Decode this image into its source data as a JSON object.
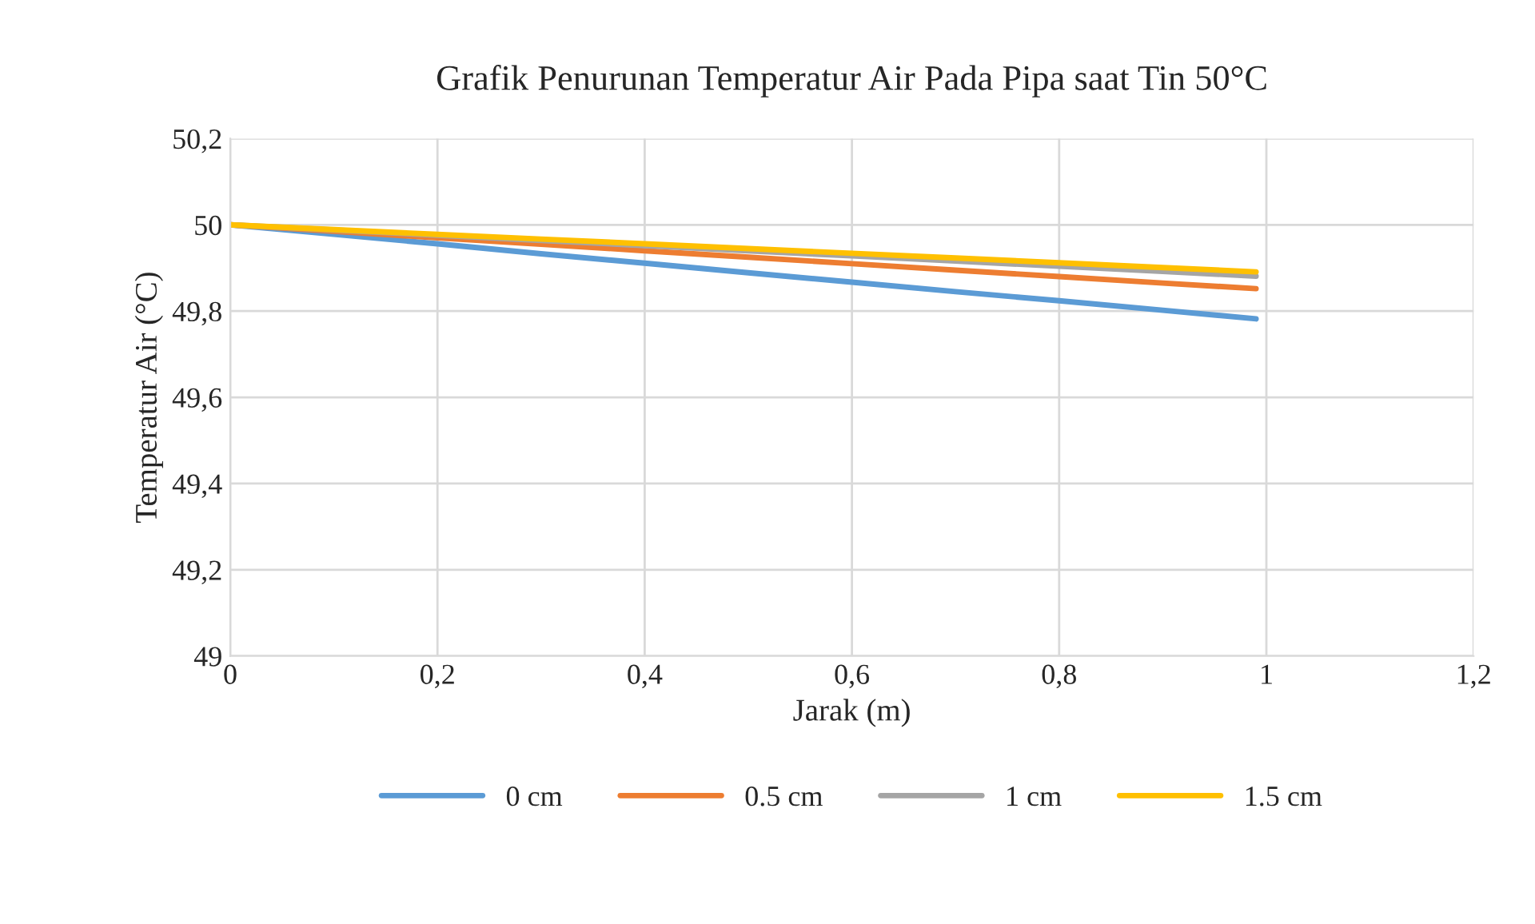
{
  "chart_data": {
    "type": "line",
    "title": "Grafik Penurunan Temperatur Air Pada Pipa saat Tin 50°C",
    "xlabel": "Jarak (m)",
    "ylabel": "Temperatur Air (°C)",
    "x": [
      0,
      0.1,
      0.2,
      0.3,
      0.4,
      0.5,
      0.6,
      0.7,
      0.8,
      0.9,
      0.99
    ],
    "series": [
      {
        "name": "0 cm",
        "color": "#5b9bd5",
        "values": [
          50,
          49.978,
          49.956,
          49.933,
          49.911,
          49.889,
          49.867,
          49.845,
          49.824,
          49.802,
          49.782
        ]
      },
      {
        "name": "0.5 cm",
        "color": "#ed7d31",
        "values": [
          50,
          49.985,
          49.97,
          49.955,
          49.94,
          49.925,
          49.91,
          49.895,
          49.88,
          49.865,
          49.852
        ]
      },
      {
        "name": "1 cm",
        "color": "#a5a5a5",
        "values": [
          50,
          49.988,
          49.976,
          49.964,
          49.952,
          49.94,
          49.928,
          49.916,
          49.904,
          49.892,
          49.881
        ]
      },
      {
        "name": "1.5 cm",
        "color": "#ffc000",
        "values": [
          50,
          49.989,
          49.978,
          49.967,
          49.956,
          49.945,
          49.934,
          49.923,
          49.912,
          49.901,
          49.891
        ]
      }
    ],
    "xlim": [
      0,
      1.2
    ],
    "xticks": [
      {
        "value": 0,
        "label": "0"
      },
      {
        "value": 0.2,
        "label": "0,2"
      },
      {
        "value": 0.4,
        "label": "0,4"
      },
      {
        "value": 0.6,
        "label": "0,6"
      },
      {
        "value": 0.8,
        "label": "0,8"
      },
      {
        "value": 1,
        "label": "1"
      },
      {
        "value": 1.2,
        "label": "1,2"
      }
    ],
    "ylim": [
      49,
      50.2
    ],
    "yticks": [
      {
        "value": 49,
        "label": "49"
      },
      {
        "value": 49.2,
        "label": "49,2"
      },
      {
        "value": 49.4,
        "label": "49,4"
      },
      {
        "value": 49.6,
        "label": "49,6"
      },
      {
        "value": 49.8,
        "label": "49,8"
      },
      {
        "value": 50,
        "label": "50"
      },
      {
        "value": 50.2,
        "label": "50,2"
      }
    ],
    "grid": true,
    "legend": "bottom",
    "marker": "none",
    "line_style": "solid"
  }
}
